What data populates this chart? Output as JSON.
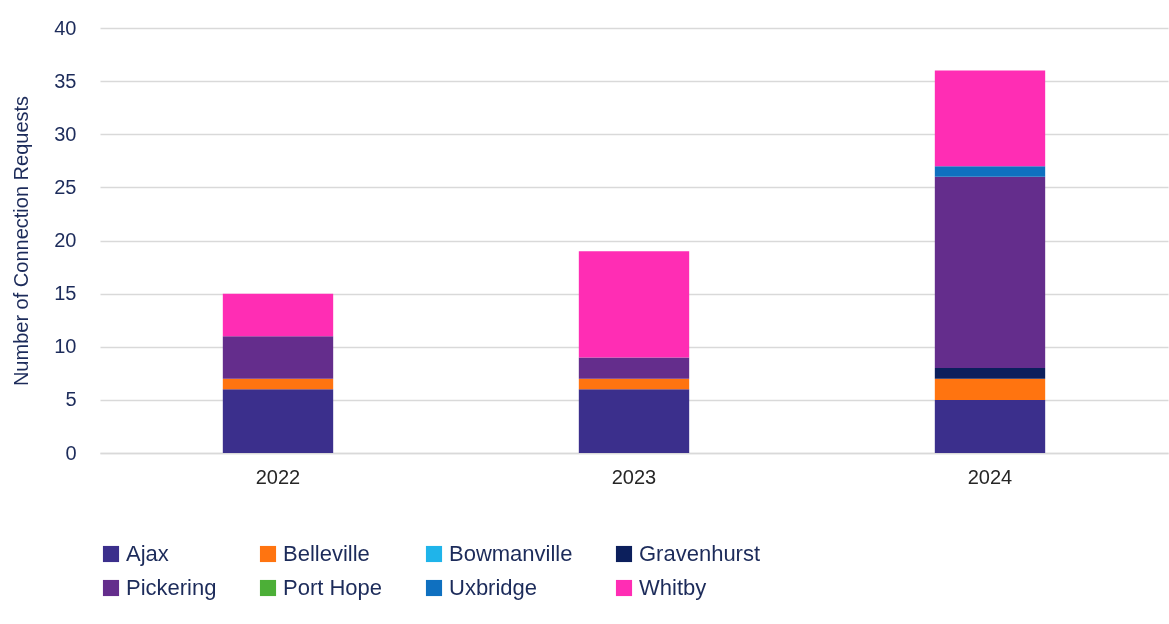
{
  "chart_data": {
    "type": "bar",
    "stacked": true,
    "ylabel": "Number of Connection Requests",
    "categories": [
      "2022",
      "2023",
      "2024"
    ],
    "series": [
      {
        "name": "Ajax",
        "color": "#3b2f8c",
        "values": [
          6,
          6,
          5
        ]
      },
      {
        "name": "Belleville",
        "color": "#ff7410",
        "values": [
          1,
          1,
          2
        ]
      },
      {
        "name": "Bowmanville",
        "color": "#1fb4ea",
        "values": [
          0,
          0,
          0
        ]
      },
      {
        "name": "Gravenhurst",
        "color": "#0c1f5c",
        "values": [
          0,
          0,
          1
        ]
      },
      {
        "name": "Pickering",
        "color": "#642d8c",
        "values": [
          4,
          2,
          18
        ]
      },
      {
        "name": "Port Hope",
        "color": "#4caf37",
        "values": [
          0,
          0,
          0
        ]
      },
      {
        "name": "Uxbridge",
        "color": "#0f70c0",
        "values": [
          0,
          0,
          1
        ]
      },
      {
        "name": "Whitby",
        "color": "#ff2db4",
        "values": [
          4,
          10,
          9
        ]
      }
    ],
    "ylim": [
      0,
      40
    ],
    "yticks": [
      0,
      5,
      10,
      15,
      20,
      25,
      30,
      35,
      40
    ],
    "grid": "y",
    "legend": "bottom"
  }
}
